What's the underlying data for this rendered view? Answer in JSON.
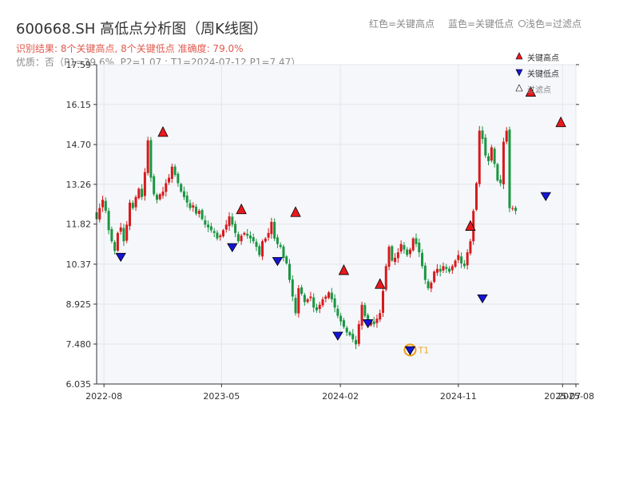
{
  "header": {
    "title": "600668.SH 高低点分析图（周K线图）",
    "legend_high": "红色=关键高点",
    "legend_low": "蓝色=关键低点",
    "legend_filtered": "浅色=过滤点",
    "result": "识别结果: 8个关键高点, 8个关键低点  准确度: 79.0%",
    "quality": "优质：否（P1=39.6%, P2=1.07 ; T1=2024-07-12 P1=7.47）"
  },
  "chart_data": {
    "type": "candlestick",
    "ylim": [
      6.035,
      17.59
    ],
    "yticks": [
      "6.035",
      "7.480",
      "8.925",
      "10.37",
      "11.82",
      "13.26",
      "14.70",
      "16.15",
      "17.59"
    ],
    "xlim": [
      "2022-07-15",
      "2025-08-01"
    ],
    "xticks": [
      {
        "label": "2022-08",
        "date": "2022-08-01"
      },
      {
        "label": "2023-05",
        "date": "2023-05-01"
      },
      {
        "label": "2024-02",
        "date": "2024-02-01"
      },
      {
        "label": "2024-11",
        "date": "2024-11-01"
      },
      {
        "label": "2025-07",
        "date": "2025-07-01"
      },
      {
        "label": "2025-08",
        "date": "2025-08-01"
      }
    ],
    "colors": {
      "up": "#d7191c",
      "down": "#1a9641",
      "high": "#e8191e",
      "low": "#1515d6"
    },
    "legend": [
      "关键高点",
      "关键低点",
      "过滤点"
    ],
    "t1_label": "T1",
    "closes": [
      12.0,
      12.4,
      12.7,
      12.3,
      11.6,
      11.2,
      10.85,
      11.5,
      11.7,
      11.2,
      11.8,
      12.6,
      12.4,
      12.8,
      13.1,
      12.8,
      13.7,
      14.85,
      13.5,
      12.9,
      12.7,
      12.9,
      13.0,
      13.3,
      13.5,
      13.9,
      13.6,
      13.3,
      13.0,
      12.8,
      12.6,
      12.4,
      12.5,
      12.2,
      12.3,
      12.0,
      11.8,
      11.7,
      11.6,
      11.5,
      11.3,
      11.4,
      11.6,
      11.8,
      12.1,
      11.8,
      11.5,
      11.2,
      11.4,
      11.5,
      11.4,
      11.3,
      11.2,
      11.0,
      10.7,
      11.2,
      11.3,
      11.5,
      11.9,
      11.3,
      11.1,
      11.0,
      10.6,
      10.4,
      9.8,
      9.2,
      8.6,
      9.5,
      9.3,
      9.0,
      9.1,
      9.2,
      8.8,
      8.7,
      8.9,
      9.1,
      9.2,
      9.35,
      9.1,
      8.8,
      8.5,
      8.3,
      8.1,
      7.9,
      7.8,
      7.65,
      7.47,
      8.2,
      8.9,
      8.5,
      8.2,
      8.3,
      8.2,
      8.4,
      8.6,
      9.4,
      10.3,
      11.0,
      10.5,
      10.6,
      10.8,
      11.1,
      10.9,
      10.7,
      10.9,
      11.3,
      11.1,
      10.8,
      10.3,
      9.8,
      9.5,
      9.7,
      10.1,
      10.2,
      10.1,
      10.3,
      10.2,
      10.1,
      10.3,
      10.5,
      10.7,
      10.4,
      10.3,
      10.8,
      11.2,
      12.3,
      13.3,
      15.2,
      14.9,
      14.3,
      14.1,
      14.6,
      14.0,
      13.4,
      13.3,
      14.8,
      15.2,
      12.4,
      12.4,
      12.3
    ],
    "key_highs": [
      {
        "date": "2022-12-16",
        "value": 14.85
      },
      {
        "date": "2023-06-16",
        "value": 12.05
      },
      {
        "date": "2023-10-20",
        "value": 11.95
      },
      {
        "date": "2024-02-09",
        "value": 9.85
      },
      {
        "date": "2024-05-03",
        "value": 9.35
      },
      {
        "date": "2024-11-29",
        "value": 11.45
      },
      {
        "date": "2025-04-18",
        "value": 16.3
      },
      {
        "date": "2025-06-27",
        "value": 15.2
      }
    ],
    "key_lows": [
      {
        "date": "2022-09-09",
        "value": 10.85
      },
      {
        "date": "2023-05-26",
        "value": 11.2
      },
      {
        "date": "2023-09-08",
        "value": 10.7
      },
      {
        "date": "2024-01-26",
        "value": 8.0
      },
      {
        "date": "2024-04-05",
        "value": 8.45
      },
      {
        "date": "2024-07-12",
        "value": 7.47
      },
      {
        "date": "2024-12-27",
        "value": 9.35
      },
      {
        "date": "2025-05-23",
        "value": 13.05
      }
    ]
  }
}
